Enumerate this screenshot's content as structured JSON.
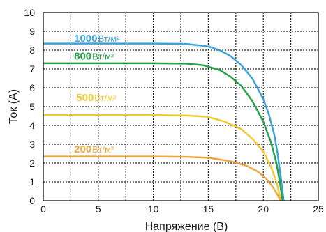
{
  "chart_data": {
    "type": "line",
    "xlabel": "Напряжение (В)",
    "ylabel": "Ток (А)",
    "xlim": [
      0,
      25
    ],
    "ylim": [
      0,
      10
    ],
    "xticks": [
      "0",
      "5",
      "10",
      "15",
      "20",
      "25"
    ],
    "yticks": [
      "0",
      "1",
      "2",
      "3",
      "4",
      "5",
      "6",
      "7",
      "8",
      "9",
      "10"
    ],
    "grid": true,
    "series": [
      {
        "name": "1000Вт/м²",
        "label_value": "1000",
        "label_unit": "Вт/м²",
        "color": "#3aa3d9",
        "points": [
          [
            0,
            8.35
          ],
          [
            5,
            8.35
          ],
          [
            10,
            8.35
          ],
          [
            13,
            8.33
          ],
          [
            15,
            8.2
          ],
          [
            16,
            8.0
          ],
          [
            17,
            7.7
          ],
          [
            18,
            7.2
          ],
          [
            19,
            6.5
          ],
          [
            20,
            5.4
          ],
          [
            20.5,
            4.6
          ],
          [
            21,
            3.5
          ],
          [
            21.3,
            2.5
          ],
          [
            21.6,
            1.2
          ],
          [
            21.85,
            0
          ]
        ]
      },
      {
        "name": "800Вт/м²",
        "label_value": "800",
        "label_unit": "Вт/м²",
        "color": "#27a04a",
        "points": [
          [
            0,
            7.3
          ],
          [
            5,
            7.3
          ],
          [
            10,
            7.3
          ],
          [
            13,
            7.28
          ],
          [
            14.5,
            7.2
          ],
          [
            16,
            6.95
          ],
          [
            17,
            6.6
          ],
          [
            18,
            6.1
          ],
          [
            19,
            5.3
          ],
          [
            20,
            4.2
          ],
          [
            20.7,
            3.1
          ],
          [
            21.2,
            2.0
          ],
          [
            21.5,
            1.0
          ],
          [
            21.75,
            0
          ]
        ]
      },
      {
        "name": "500Вт/м²",
        "label_value": "500",
        "label_unit": "Вт/м²",
        "color": "#f2c833",
        "points": [
          [
            0,
            4.55
          ],
          [
            5,
            4.55
          ],
          [
            10,
            4.55
          ],
          [
            13,
            4.53
          ],
          [
            15,
            4.45
          ],
          [
            16.5,
            4.2
          ],
          [
            18,
            3.8
          ],
          [
            19,
            3.3
          ],
          [
            20,
            2.6
          ],
          [
            20.7,
            1.8
          ],
          [
            21.2,
            1.0
          ],
          [
            21.6,
            0
          ]
        ]
      },
      {
        "name": "200Вт/м²",
        "label_value": "200",
        "label_unit": "Вт/м²",
        "color": "#f0a542",
        "points": [
          [
            0,
            2.35
          ],
          [
            5,
            2.35
          ],
          [
            10,
            2.35
          ],
          [
            13,
            2.33
          ],
          [
            15,
            2.28
          ],
          [
            17,
            2.1
          ],
          [
            18.5,
            1.85
          ],
          [
            19.5,
            1.55
          ],
          [
            20.3,
            1.15
          ],
          [
            20.9,
            0.7
          ],
          [
            21.3,
            0.3
          ],
          [
            21.55,
            0
          ]
        ]
      }
    ]
  }
}
